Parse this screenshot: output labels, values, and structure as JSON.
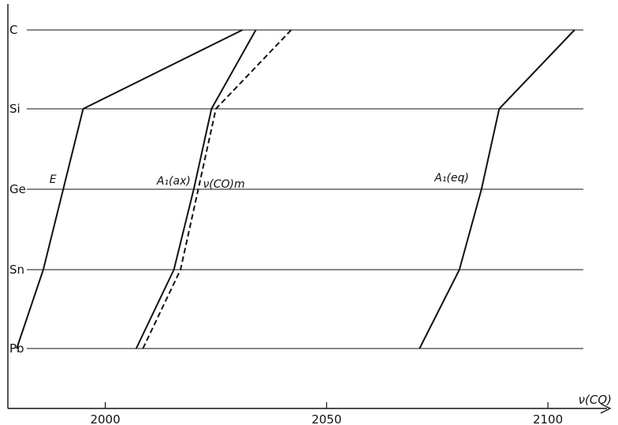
{
  "chart_data": {
    "type": "line",
    "title": "",
    "xlabel": "ν(CO)",
    "ylabel": "",
    "xlim": [
      1978,
      2108
    ],
    "x_ticks": [
      2000,
      2050,
      2100
    ],
    "categories": [
      "C",
      "Si",
      "Ge",
      "Sn",
      "Pb"
    ],
    "grid": "horizontal lines at each category",
    "series": [
      {
        "name": "E",
        "style": "solid",
        "points": [
          {
            "cat": "C",
            "x": 2031
          },
          {
            "cat": "Si",
            "x": 1995
          },
          {
            "cat": "Ge",
            "x": 1990.5
          },
          {
            "cat": "Sn",
            "x": 1986
          },
          {
            "cat": "Pb",
            "x": 1980
          }
        ]
      },
      {
        "name": "A₁(ax)",
        "style": "solid",
        "points": [
          {
            "cat": "C",
            "x": 2034
          },
          {
            "cat": "Si",
            "x": 2024
          },
          {
            "cat": "Ge",
            "x": 2020
          },
          {
            "cat": "Sn",
            "x": 2015.5
          },
          {
            "cat": "Pb",
            "x": 2007
          }
        ]
      },
      {
        "name": "ν(CO)m",
        "style": "dashed",
        "points": [
          {
            "cat": "C",
            "x": 2042
          },
          {
            "cat": "Si",
            "x": 2025
          },
          {
            "cat": "Ge",
            "x": 2021
          },
          {
            "cat": "Sn",
            "x": 2017
          },
          {
            "cat": "Pb",
            "x": 2008.5
          }
        ]
      },
      {
        "name": "A₁(eq)",
        "style": "solid",
        "points": [
          {
            "cat": "C",
            "x": 2106
          },
          {
            "cat": "Si",
            "x": 2089
          },
          {
            "cat": "Ge",
            "x": 2085
          },
          {
            "cat": "Sn",
            "x": 2080
          },
          {
            "cat": "Pb",
            "x": 2071
          }
        ]
      }
    ],
    "annotations": [
      {
        "text": "E",
        "series": "E"
      },
      {
        "text": "A₁(ax)",
        "series": "A₁(ax)"
      },
      {
        "text": "ν(CO)m",
        "series": "ν(CO)m"
      },
      {
        "text": "A₁(eq)",
        "series": "A₁(eq)"
      }
    ]
  }
}
